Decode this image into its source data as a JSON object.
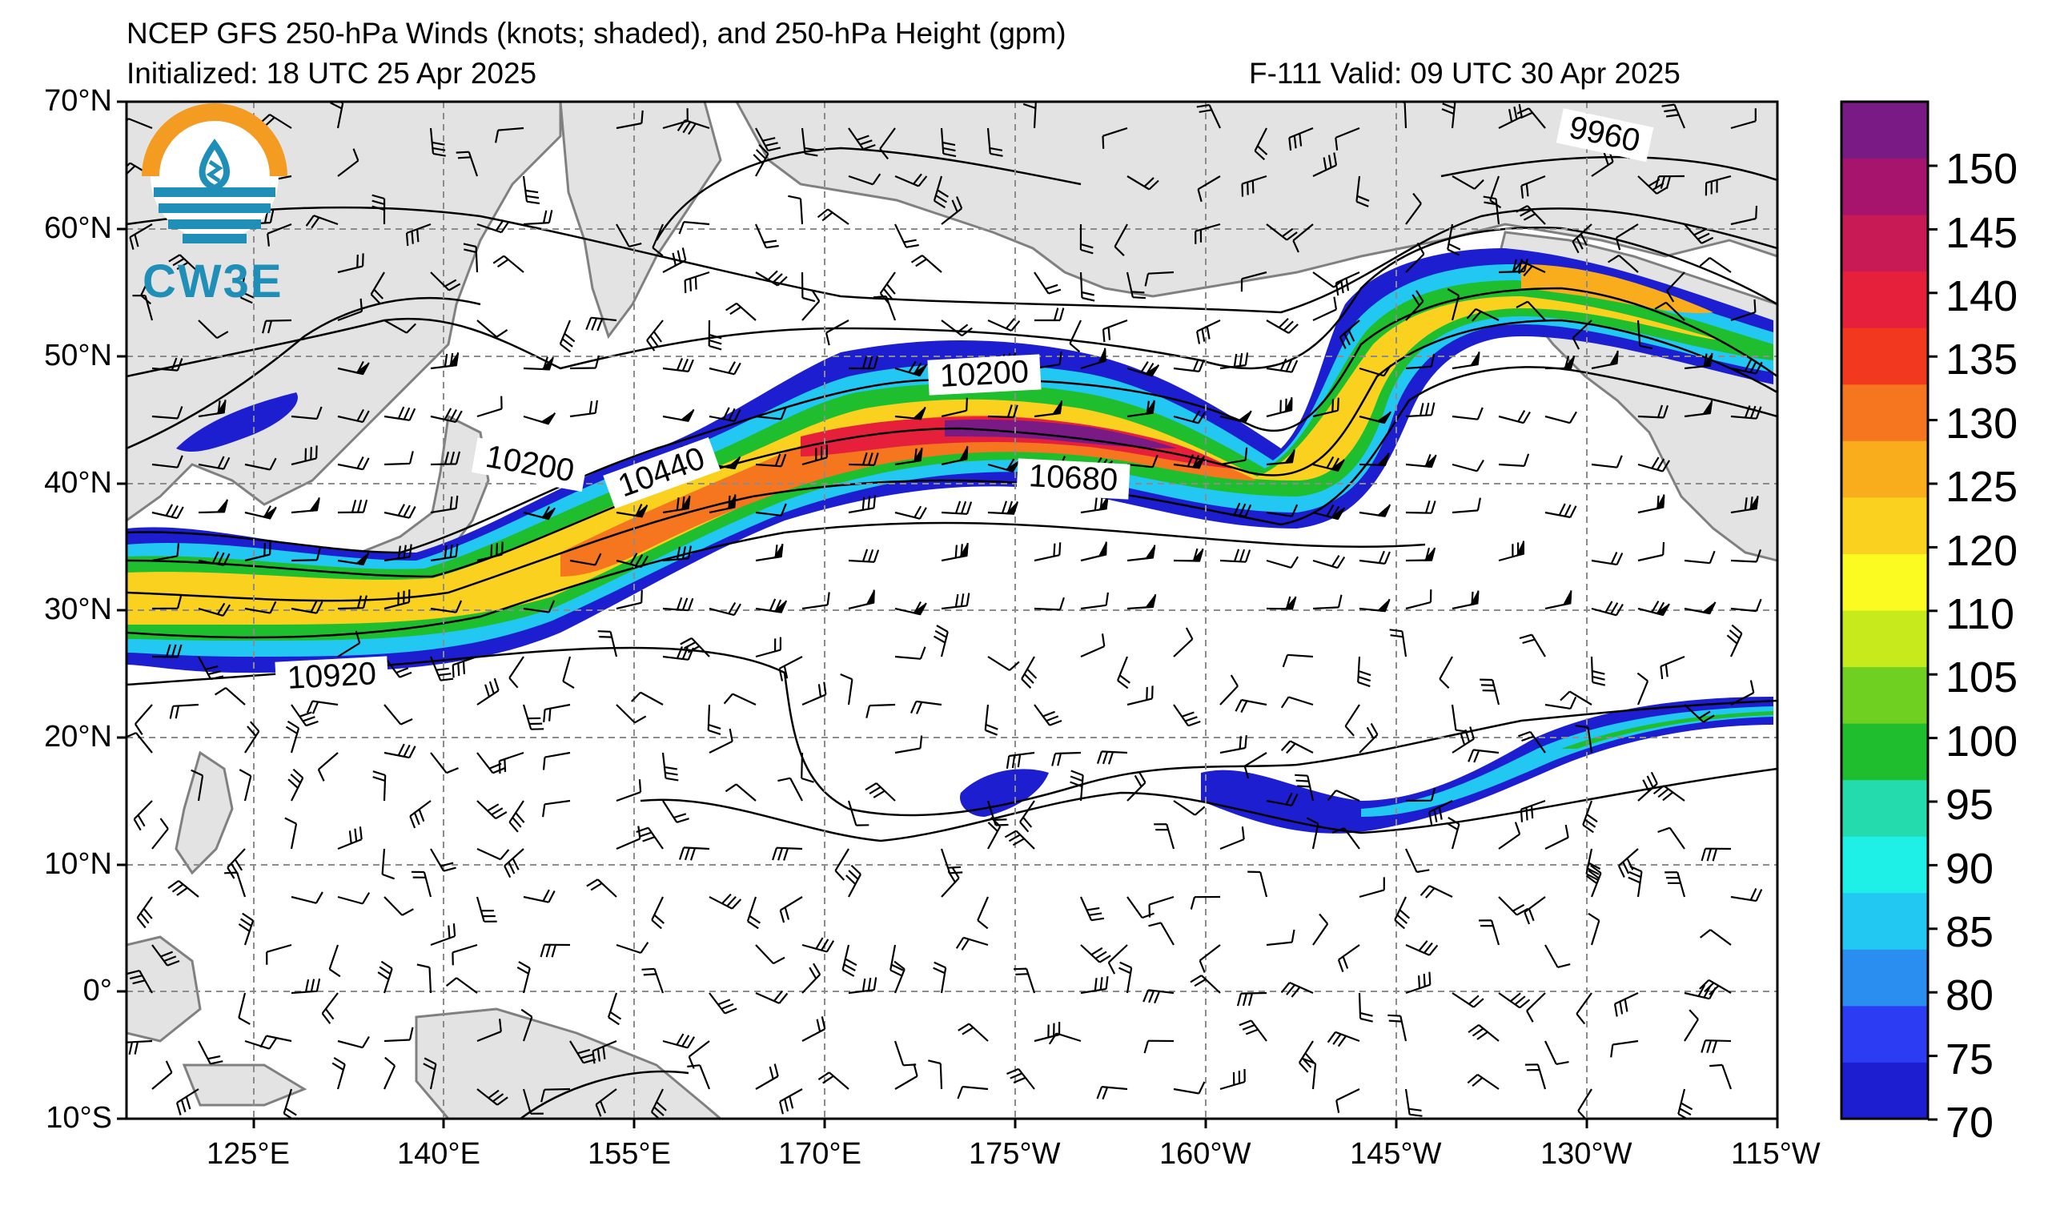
{
  "header": {
    "title": "NCEP GFS 250-hPa Winds (knots; shaded), and 250-hPa Height (gpm)",
    "initialized": "Initialized: 18 UTC 25 Apr 2025",
    "forecast": "F-111  Valid: 09 UTC 30 Apr 2025"
  },
  "logo": {
    "text": "CW3E",
    "icon": "cw3e-logo-icon"
  },
  "axes": {
    "lat_labels": [
      "70°N",
      "60°N",
      "50°N",
      "40°N",
      "30°N",
      "20°N",
      "10°N",
      "0°",
      "10°S"
    ],
    "lon_labels": [
      "125°E",
      "140°E",
      "155°E",
      "170°E",
      "175°W",
      "160°W",
      "145°W",
      "130°W",
      "115°W"
    ]
  },
  "contour_labels": [
    "9960",
    "10200",
    "10200",
    "10440",
    "10680",
    "10920"
  ],
  "colorbar": {
    "labels": [
      "150",
      "145",
      "140",
      "135",
      "130",
      "125",
      "120",
      "110",
      "105",
      "100",
      "95",
      "90",
      "85",
      "80",
      "75",
      "70"
    ],
    "colors": [
      "#1c1ecf",
      "#2b3cf2",
      "#2a8df0",
      "#22c7f2",
      "#1ef0e8",
      "#24dbae",
      "#1fbe2f",
      "#6fd022",
      "#c6ea1c",
      "#fbfb22",
      "#fbd11f",
      "#f9ad1d",
      "#f6761f",
      "#f2381f",
      "#e6203a",
      "#c81a55",
      "#a6146d",
      "#7a1b85"
    ]
  },
  "colors": {
    "land": "#e3e3e3",
    "coast": "#808080",
    "grid": "#8c8c8c"
  }
}
